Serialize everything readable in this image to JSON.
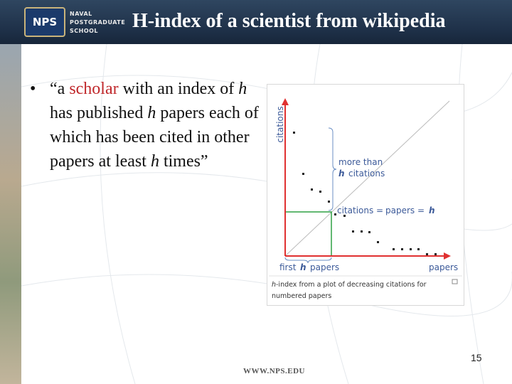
{
  "header": {
    "logo": "NPS",
    "school": [
      "NAVAL",
      "POSTGRADUATE",
      "SCHOOL"
    ],
    "title": "H-index of a scientist from wikipedia"
  },
  "bullet": {
    "parts": [
      "“a ",
      "scholar",
      " with an index of ",
      "h",
      " has published ",
      "h",
      " papers each of which has been cited in other papers at least ",
      "h",
      " times”"
    ]
  },
  "figure": {
    "axis_y": "citations",
    "axis_x": "papers",
    "brace_label": [
      "more than",
      "h",
      "citations"
    ],
    "equation": [
      "citations =",
      "papers =",
      "h"
    ],
    "x_brace_label": [
      "first",
      "h",
      "papers"
    ],
    "caption": [
      "h",
      "-index from a plot of decreasing citations for",
      "numbered papers"
    ]
  },
  "page_number": "15",
  "footer": "WWW.NPS.EDU"
}
